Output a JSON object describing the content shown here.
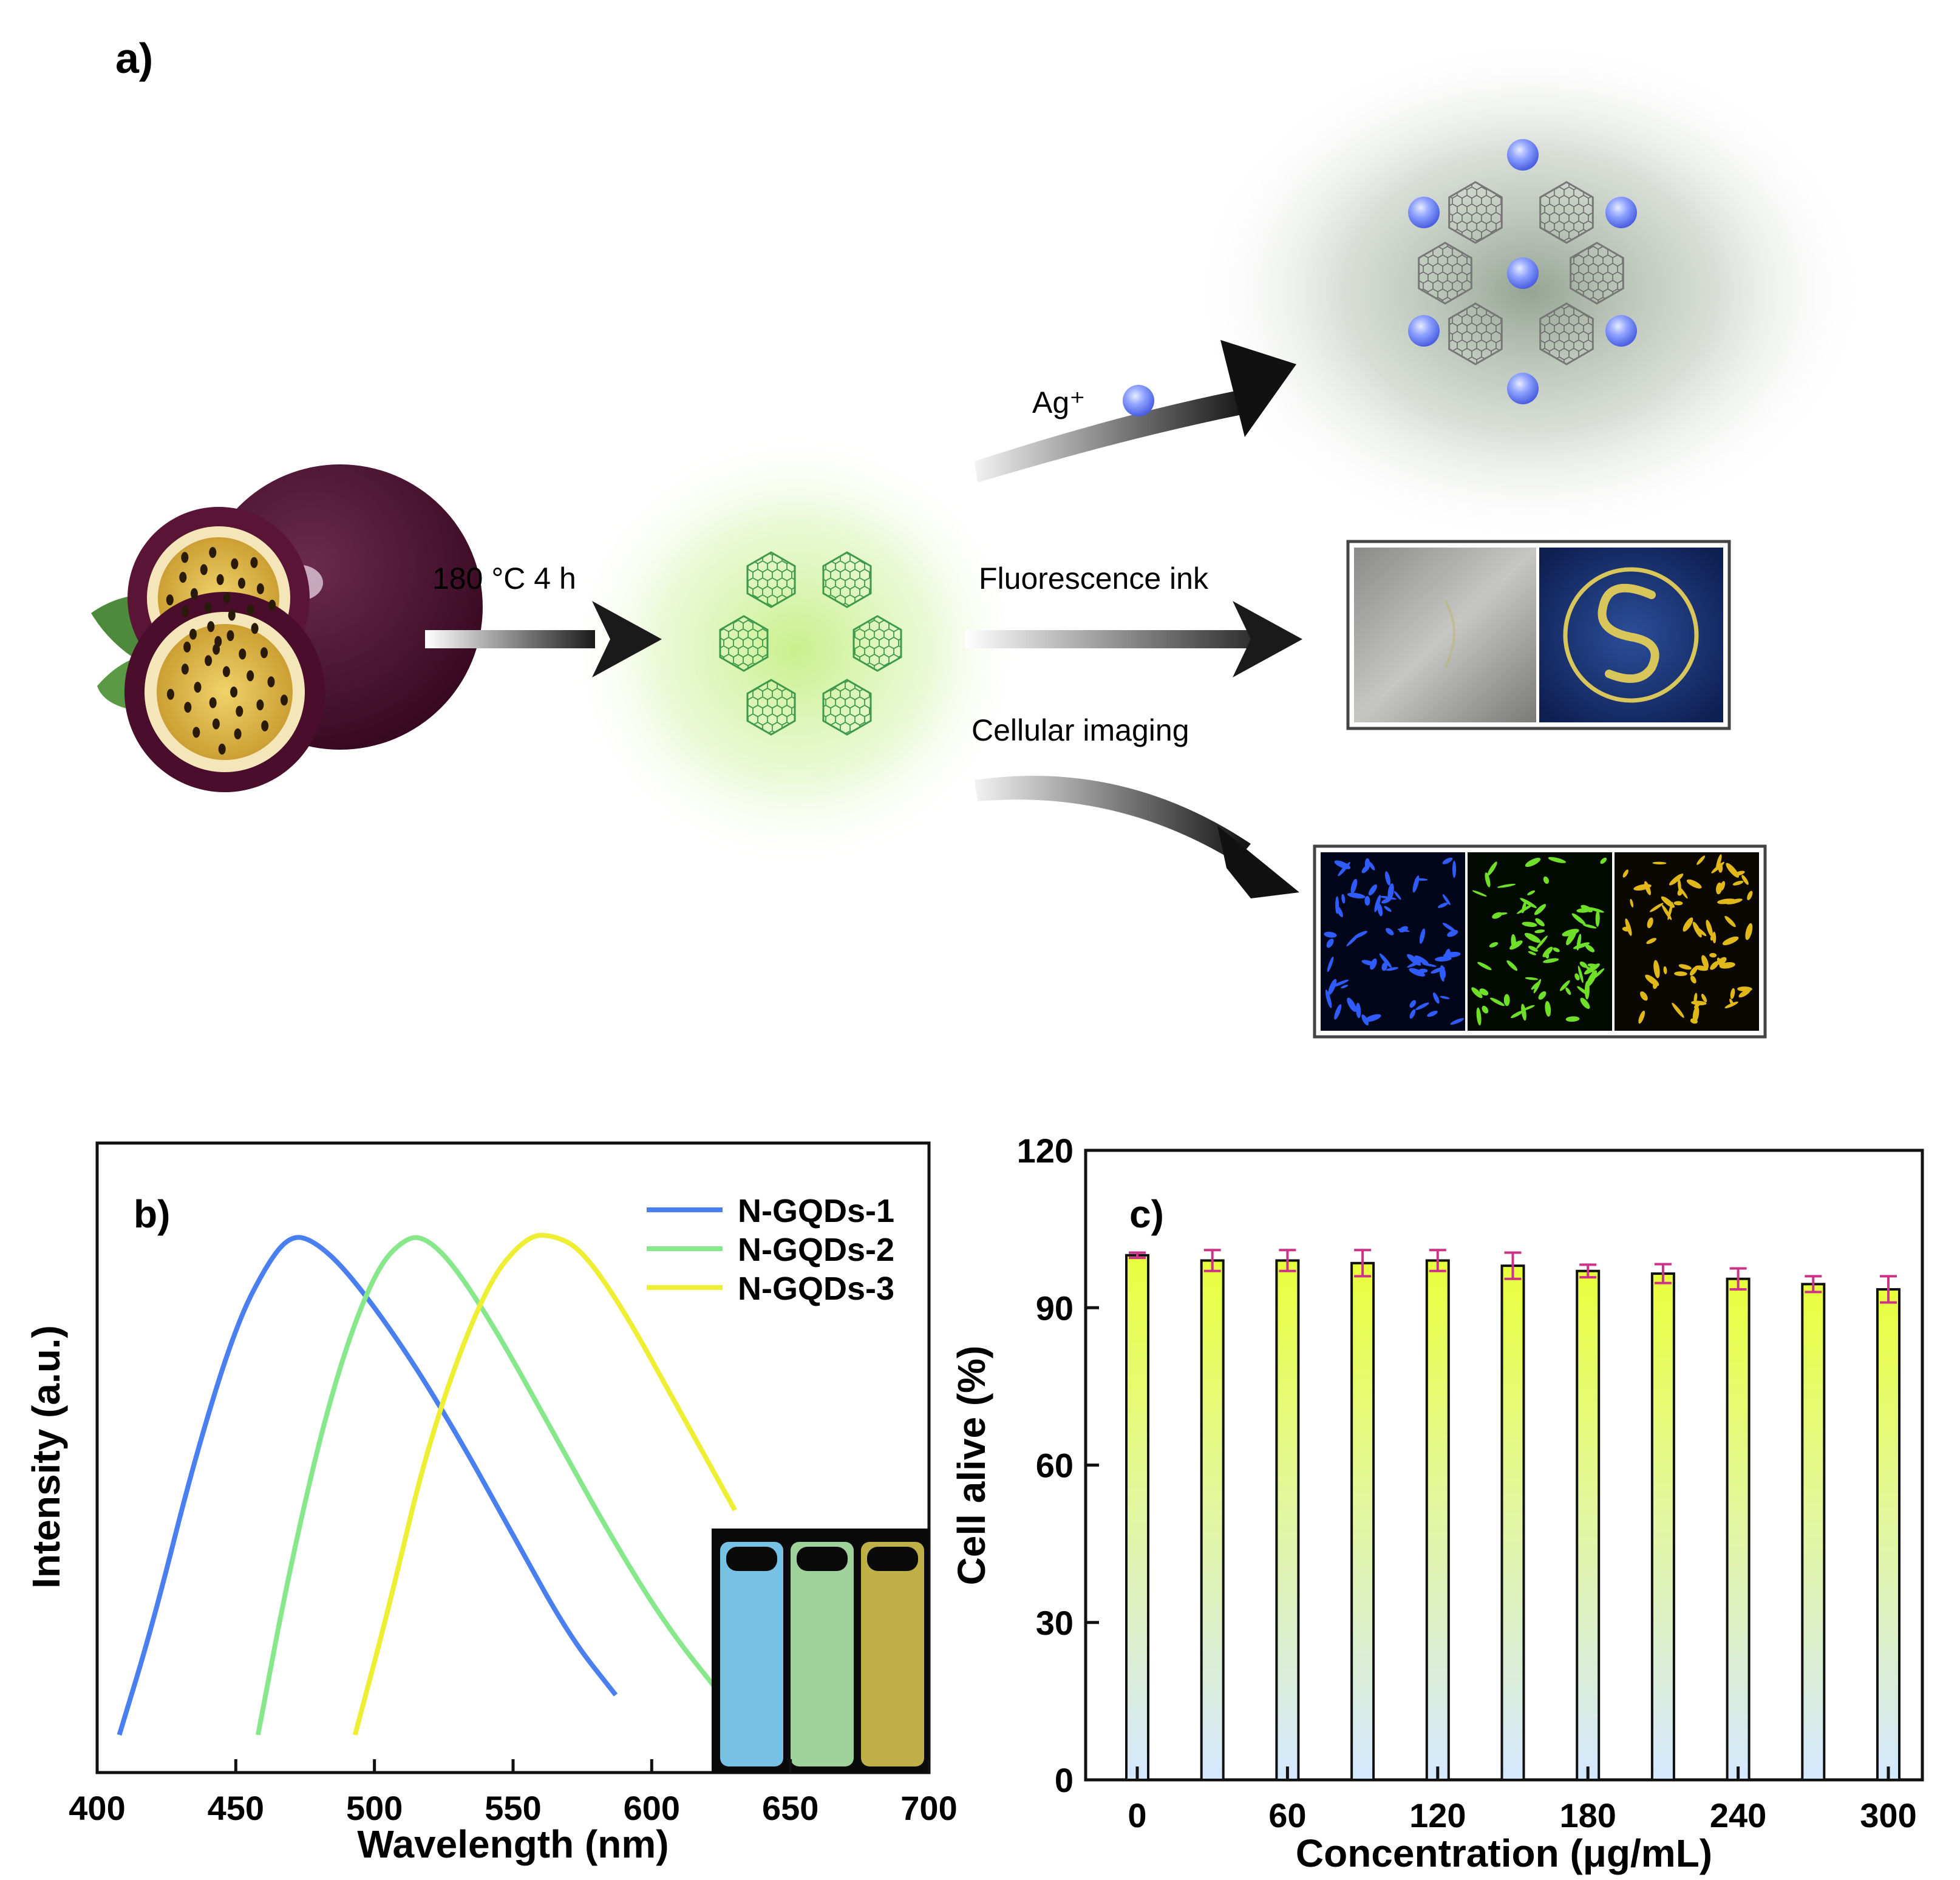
{
  "panel_a": {
    "label": "a)",
    "synthesis_condition": "180 °C 4 h",
    "ion_label": "Ag⁺",
    "application_ink": "Fluorescence ink",
    "application_imaging": "Cellular imaging",
    "colors": {
      "glow": "#c8f08c",
      "ion": "#7f96ff",
      "fruit": "#4a1030"
    }
  },
  "panel_b": {
    "label": "b)",
    "chart_data": {
      "type": "line",
      "xlabel": "Wavelength (nm)",
      "ylabel": "Intensity (a.u.)",
      "xlim": [
        400,
        700
      ],
      "xticks": [
        "400",
        "450",
        "500",
        "550",
        "600",
        "650",
        "700"
      ],
      "legend_position": "top-right",
      "series": [
        {
          "name": "N-GQDs-1",
          "color": "#4a7ff0",
          "x": [
            408,
            420,
            435,
            450,
            462,
            470,
            478,
            490,
            510,
            530,
            550,
            570,
            587
          ],
          "y": [
            0.0,
            0.22,
            0.55,
            0.82,
            0.95,
            1.0,
            0.99,
            0.93,
            0.78,
            0.6,
            0.4,
            0.2,
            0.08
          ]
        },
        {
          "name": "N-GQDs-2",
          "color": "#86e88a",
          "x": [
            458,
            470,
            485,
            500,
            512,
            520,
            530,
            545,
            565,
            585,
            605,
            625
          ],
          "y": [
            0.0,
            0.35,
            0.7,
            0.93,
            1.0,
            0.99,
            0.93,
            0.8,
            0.6,
            0.4,
            0.22,
            0.08
          ]
        },
        {
          "name": "N-GQDs-3",
          "color": "#eeee33",
          "x": [
            493,
            505,
            520,
            540,
            555,
            565,
            575,
            590,
            610,
            630
          ],
          "y": [
            0.0,
            0.25,
            0.6,
            0.9,
            1.0,
            1.0,
            0.97,
            0.85,
            0.65,
            0.45
          ]
        }
      ]
    },
    "inset_vials": [
      "#7ccbf0",
      "#a8dca2",
      "#c8b84a"
    ]
  },
  "panel_c": {
    "label": "c)",
    "chart_data": {
      "type": "bar",
      "xlabel": "Concentration (μg/mL)",
      "ylabel": "Cell alive (%)",
      "ylim": [
        0,
        120
      ],
      "yticks": [
        "0",
        "30",
        "60",
        "90",
        "120"
      ],
      "xticks": [
        "0",
        "60",
        "120",
        "180",
        "240",
        "300"
      ],
      "categories": [
        0,
        30,
        60,
        90,
        120,
        150,
        180,
        210,
        240,
        270,
        300
      ],
      "values": [
        100,
        99,
        99,
        98.5,
        99,
        98,
        97,
        96.5,
        95.5,
        94.5,
        93.5
      ],
      "errors": [
        0.5,
        2,
        2,
        2.5,
        2,
        2.5,
        1.2,
        1.8,
        2,
        1.5,
        2.5
      ],
      "bar_gradient": [
        "#e8ff3c",
        "#d4e8ff"
      ],
      "error_color": "#cc3388"
    }
  }
}
